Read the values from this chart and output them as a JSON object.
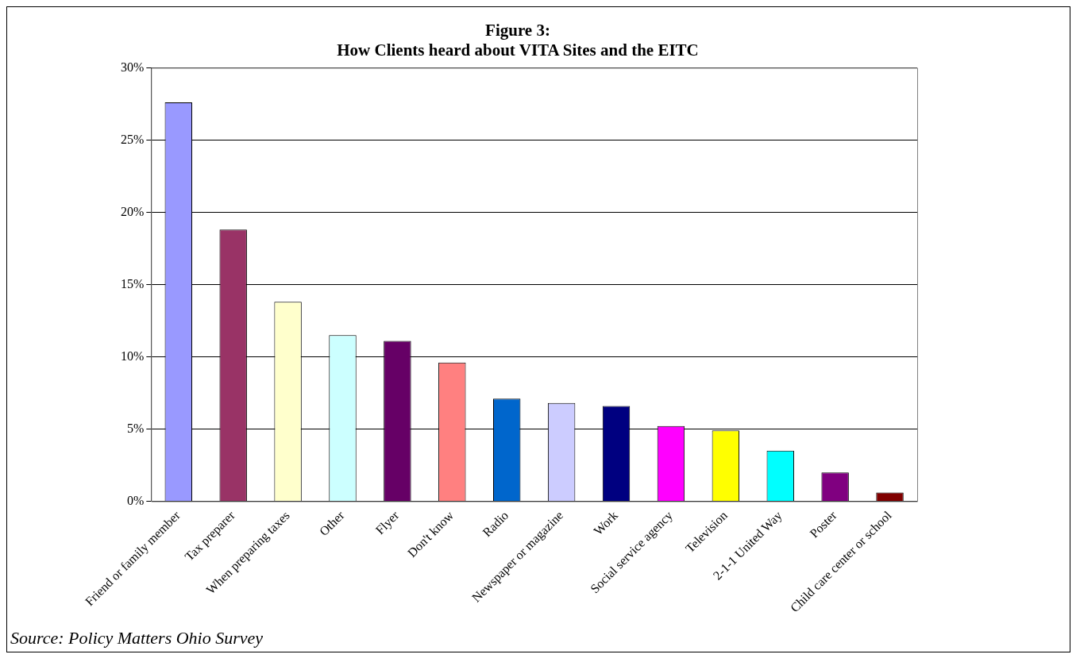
{
  "chart_data": {
    "type": "bar",
    "title": [
      "Figure 3:",
      "How Clients heard about VITA Sites and the EITC"
    ],
    "categories": [
      "Friend or family member",
      "Tax preparer",
      "When preparing taxes",
      "Other",
      "Flyer",
      "Don't know",
      "Radio",
      "Newspaper or magazine",
      "Work",
      "Social service agency",
      "Television",
      "2-1-1 United Way",
      "Poster",
      "Child care center or school"
    ],
    "values": [
      27.6,
      18.8,
      13.8,
      11.5,
      11.1,
      9.6,
      7.1,
      6.8,
      6.6,
      5.2,
      4.9,
      3.5,
      2.0,
      0.6
    ],
    "colors": [
      "#9999ff",
      "#993366",
      "#ffffcc",
      "#ccffff",
      "#660066",
      "#ff8080",
      "#0066cc",
      "#ccccff",
      "#000080",
      "#ff00ff",
      "#ffff00",
      "#00ffff",
      "#800080",
      "#800000"
    ],
    "ylim": [
      0,
      30
    ],
    "yticks": [
      {
        "value": 0,
        "label": "0%"
      },
      {
        "value": 5,
        "label": "5%"
      },
      {
        "value": 10,
        "label": "10%"
      },
      {
        "value": 15,
        "label": "15%"
      },
      {
        "value": 20,
        "label": "20%"
      },
      {
        "value": 25,
        "label": "25%"
      },
      {
        "value": 30,
        "label": "30%"
      }
    ],
    "grid": "y",
    "annotations": [
      "Source: Policy Matters Ohio Survey"
    ]
  }
}
